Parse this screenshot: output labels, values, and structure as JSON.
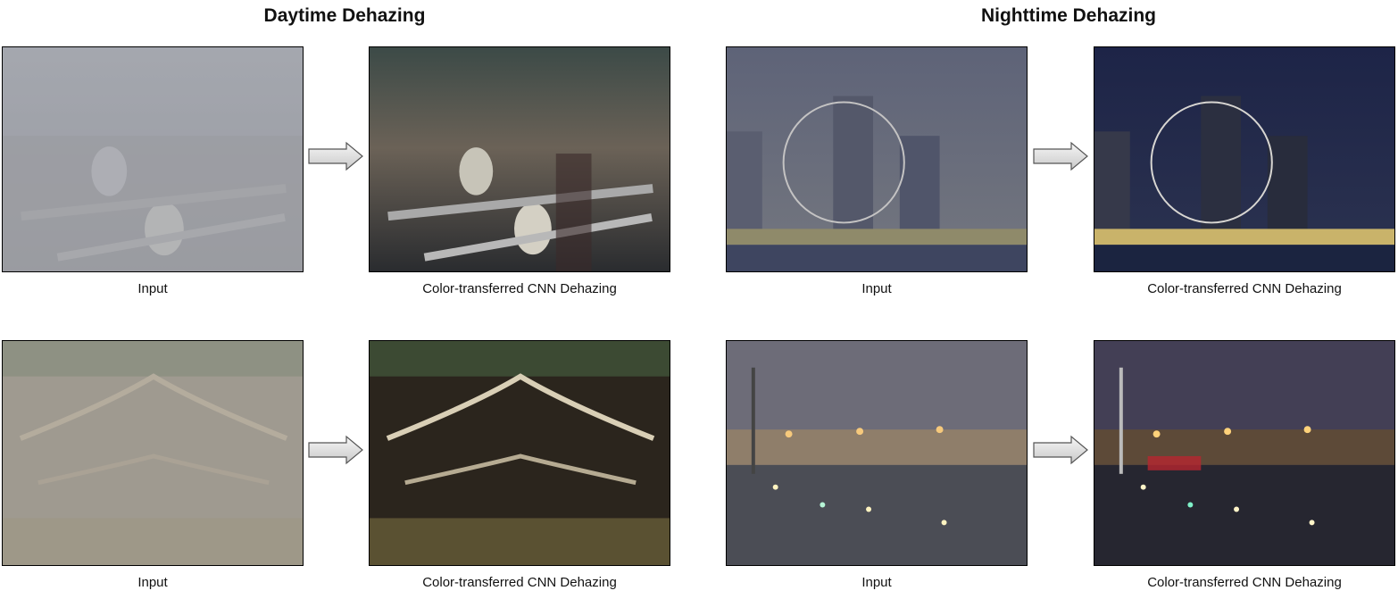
{
  "sections": [
    {
      "title": "Daytime Dehazing"
    },
    {
      "title": "Nighttime Dehazing"
    }
  ],
  "rows": [
    {
      "input_caption": "Input",
      "output_caption": "Color-transferred CNN Dehazing",
      "scene": "snowy owls in foggy marsh"
    },
    {
      "input_caption": "Input",
      "output_caption": "Color-transferred CNN Dehazing",
      "scene": "tree roots over water"
    },
    {
      "input_caption": "Input",
      "output_caption": "Color-transferred CNN Dehazing",
      "scene": "city skyline with observation wheel at night"
    },
    {
      "input_caption": "Input",
      "output_caption": "Color-transferred CNN Dehazing",
      "scene": "waterfront with lights at night"
    }
  ],
  "icons": {
    "arrow": "right-arrow-icon"
  }
}
